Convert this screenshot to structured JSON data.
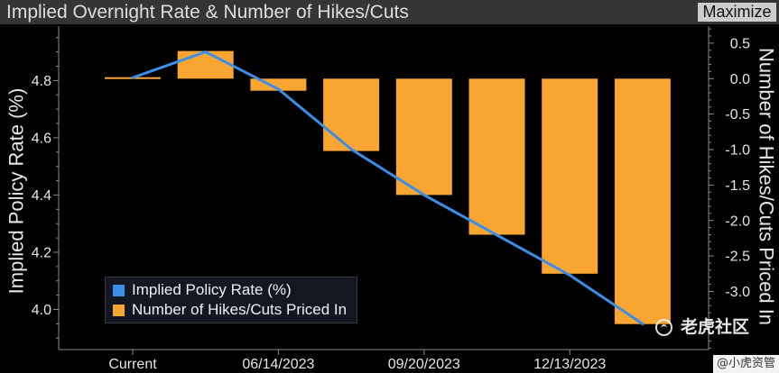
{
  "header": {
    "maximize_label": "Maximize"
  },
  "chart_data": {
    "type": "bar",
    "title": "Implied Overnight Rate & Number of Hikes/Cuts",
    "x_tick_labels": [
      {
        "at": 0,
        "label": "Current"
      },
      {
        "at": 2,
        "label": "06/14/2023"
      },
      {
        "at": 4,
        "label": "09/20/2023"
      },
      {
        "at": 6,
        "label": "12/13/2023"
      }
    ],
    "series": [
      {
        "name": "Implied Policy Rate (%)",
        "type": "line",
        "color": "#3b8ee8",
        "values": [
          4.81,
          4.9,
          4.77,
          4.56,
          4.4,
          4.26,
          4.12,
          3.95
        ]
      },
      {
        "name": "Number of Hikes/Cuts Priced In",
        "type": "bar",
        "color": "#f8a532",
        "values": [
          0.02,
          0.39,
          -0.17,
          -1.02,
          -1.64,
          -2.2,
          -2.75,
          -3.46
        ]
      }
    ],
    "y_left": {
      "label": "Implied Policy Rate (%)",
      "range": [
        3.86,
        4.99
      ],
      "ticks": [
        4.0,
        4.2,
        4.4,
        4.6,
        4.8
      ],
      "minor_step": 0.05
    },
    "y_right": {
      "label": "Number of Hikes/Cuts Priced In",
      "range": [
        -3.82,
        0.74
      ],
      "ticks": [
        0.5,
        0.0,
        -0.5,
        -1.0,
        -1.5,
        -2.0,
        -2.5,
        -3.0
      ],
      "minor_step": 0.1
    },
    "grid": false,
    "legend": "bottom-left"
  },
  "watermark": {
    "brand": "老虎社区",
    "handle": "@小虎资管",
    "logo_icon": "tiger-logo-icon"
  },
  "colors": {
    "background": "#000000",
    "header_bg": "#353535",
    "axis": "#8a8a8a",
    "tick_text": "#e6e6e6"
  }
}
